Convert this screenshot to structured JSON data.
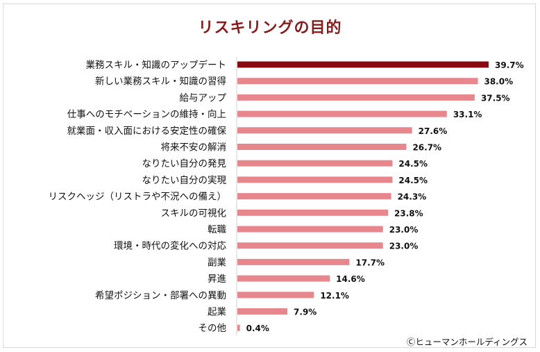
{
  "chart_data": {
    "type": "bar",
    "orientation": "horizontal",
    "title": "リスキリングの目的",
    "categories": [
      "業務スキル・知識のアップデート",
      "新しい業務スキル・知識の習得",
      "給与アップ",
      "仕事へのモチベーションの維持・向上",
      "就業面・収入面における安定性の確保",
      "将来不安の解消",
      "なりたい自分の発見",
      "なりたい自分の実現",
      "リスクヘッジ（リストラや不況への備え）",
      "スキルの可視化",
      "転職",
      "環境・時代の変化への対応",
      "副業",
      "昇進",
      "希望ポジション・部署への異動",
      "起業",
      "その他"
    ],
    "values": [
      39.7,
      38.0,
      37.5,
      33.1,
      27.6,
      26.7,
      24.5,
      24.5,
      24.3,
      23.8,
      23.0,
      23.0,
      17.7,
      14.6,
      12.1,
      7.9,
      0.4
    ],
    "value_labels": [
      "39.7%",
      "38.0%",
      "37.5%",
      "33.1%",
      "27.6%",
      "26.7%",
      "24.5%",
      "24.5%",
      "24.3%",
      "23.8%",
      "23.0%",
      "23.0%",
      "17.7%",
      "14.6%",
      "12.1%",
      "7.9%",
      "0.4%"
    ],
    "unit": "%",
    "xlim": [
      0,
      40
    ],
    "grid": false,
    "highlight_color": "#8b0a12",
    "bar_color": "#e8868d"
  },
  "credit": "Ⓒヒューマンホールディングス"
}
